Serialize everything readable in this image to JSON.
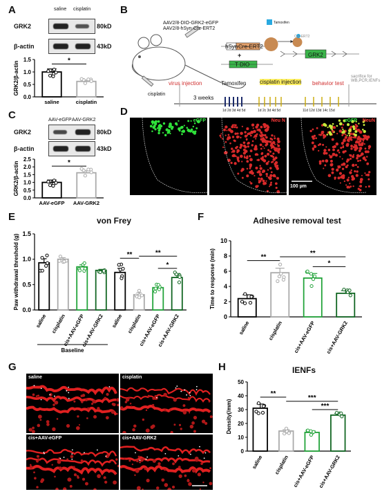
{
  "panels": {
    "A": {
      "letter": "A",
      "blot_labels": [
        "saline",
        "cisplatin"
      ],
      "protein1": "GRK2",
      "kd1": "80kD",
      "protein2": "β-actin",
      "kd2": "43kD",
      "ylabel": "GRK2/β-actin",
      "sig": "*"
    },
    "B": {
      "letter": "B",
      "virus_line1": "AAV2/8-DIO-GRK2-eGFP",
      "virus_line2": "AAV2/8-hSyn-Cre-ERT2",
      "hsyn": "hSyn",
      "cre": "Cre-ERT2",
      "plus": "+",
      "tdio": "T DIO",
      "tamoxifen_top": "Tamoxifen",
      "cre_small": "Cre-ERT2",
      "grk2": "GRK2",
      "cisplatin_label": "cisplatin",
      "virus_injection": "virus injection",
      "three_weeks": "3 weeks",
      "tamoxifen": "Tamoxifen",
      "cisplatin_injection": "cisplatin injection",
      "behavior_test": "behavior test",
      "sacrifice": "sacrifice for WB,PCR,IENFs",
      "tam_days": "1d 2d 3d 4d 5d",
      "cis_days": "1d 2c 3d 4d 5d",
      "beh_days": "11d 12d 13d 14c 15d"
    },
    "C": {
      "letter": "C",
      "blot_labels": [
        "AAV-eGFP",
        "AAV-GRK2"
      ],
      "protein1": "GRK2",
      "kd1": "80kD",
      "protein2": "β-actin",
      "kd2": "43kD",
      "ylabel": "GRK2/β-actin",
      "sig": "*"
    },
    "D": {
      "letter": "D",
      "ch1": "eGFP",
      "ch2": "Neu N",
      "ch3a": "eGFP",
      "ch3b": "NeuN",
      "scale": "100 µm"
    },
    "E": {
      "letter": "E",
      "title": "von Frey",
      "ylabel": "Paw withdrawal threshold (g)",
      "baseline": "Baseline",
      "sig": [
        "**",
        "**",
        "*"
      ]
    },
    "F": {
      "letter": "F",
      "title": "Adhesive removal test",
      "ylabel": "Time to response (min)",
      "sig": [
        "**",
        "**",
        "*"
      ]
    },
    "G": {
      "letter": "G",
      "labels": [
        "saline",
        "cisplatin",
        "cis+AAV-eGFP",
        "cis+AAV-GRK2"
      ]
    },
    "H": {
      "letter": "H",
      "title": "IENFs",
      "ylabel": "Density(/mm)",
      "sig": [
        "**",
        "***",
        "***"
      ]
    }
  },
  "chart_data": [
    {
      "panel": "A",
      "type": "bar",
      "categories": [
        "saline",
        "cisplatin"
      ],
      "values": [
        1.0,
        0.62
      ],
      "errors": [
        0.12,
        0.05
      ],
      "ylim": [
        0,
        1.5
      ],
      "yticks": [
        "0.0",
        "0.5",
        "1.0",
        "1.5"
      ],
      "colors": [
        "#000000",
        "#aaaaaa"
      ]
    },
    {
      "panel": "C",
      "type": "bar",
      "categories": [
        "AAV-eGFP",
        "AAV-GRK2"
      ],
      "values": [
        1.0,
        1.62
      ],
      "errors": [
        0.15,
        0.13
      ],
      "ylim": [
        0,
        2.5
      ],
      "yticks": [
        "0.0",
        "0.5",
        "1.0",
        "1.5",
        "2.0",
        "2.5"
      ],
      "colors": [
        "#000000",
        "#aaaaaa"
      ]
    },
    {
      "panel": "E",
      "type": "bar",
      "categories": [
        "saline",
        "cisplatin",
        "cis+AAV-eGFP",
        "cis+AAV-GRK2",
        "saline",
        "cisplatin",
        "cis+AAV-eGFP",
        "cis+AAV-GRK2"
      ],
      "values": [
        0.93,
        1.0,
        0.85,
        0.78,
        0.74,
        0.3,
        0.44,
        0.64
      ],
      "errors": [
        0.08,
        0.03,
        0.04,
        0.02,
        0.08,
        0.04,
        0.04,
        0.05
      ],
      "ylim": [
        0,
        1.5
      ],
      "yticks": [
        "0.0",
        "0.5",
        "1.0",
        "1.5"
      ],
      "colors": [
        "#000000",
        "#aaaaaa",
        "#22a33a",
        "#116622",
        "#000000",
        "#aaaaaa",
        "#22a33a",
        "#116622"
      ]
    },
    {
      "panel": "F",
      "type": "bar",
      "categories": [
        "saline",
        "cisplatin",
        "cis+AAV-eGFP",
        "cis+AAV-GRK2"
      ],
      "values": [
        2.4,
        5.8,
        5.1,
        3.1
      ],
      "errors": [
        0.5,
        0.6,
        0.6,
        0.35
      ],
      "ylim": [
        0,
        10
      ],
      "yticks": [
        "0",
        "2",
        "4",
        "6",
        "8",
        "10"
      ],
      "colors": [
        "#000000",
        "#aaaaaa",
        "#22a33a",
        "#116622"
      ]
    },
    {
      "panel": "H",
      "type": "bar",
      "categories": [
        "saline",
        "cisplatin",
        "cis+AAV-eGFP",
        "cis+AAV-GRK2"
      ],
      "values": [
        31,
        14.5,
        13.5,
        26
      ],
      "errors": [
        3,
        1,
        1,
        1.2
      ],
      "ylim": [
        0,
        50
      ],
      "yticks": [
        "0",
        "10",
        "20",
        "30",
        "40",
        "50"
      ],
      "colors": [
        "#000000",
        "#aaaaaa",
        "#22a33a",
        "#116622"
      ]
    }
  ]
}
